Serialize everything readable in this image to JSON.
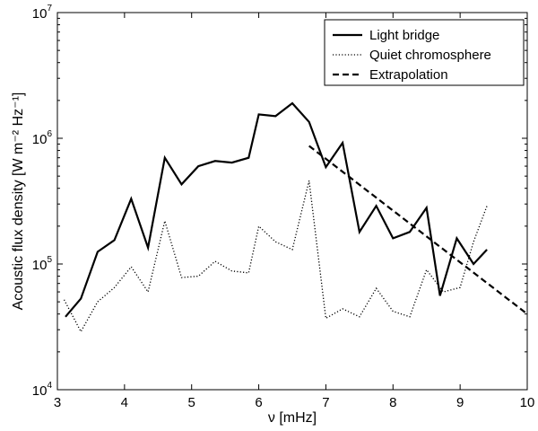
{
  "chart_data": {
    "type": "line",
    "xlabel": "ν [mHz]",
    "ylabel": "Acoustic flux density [W m⁻² Hz⁻¹]",
    "xlim": [
      3,
      10
    ],
    "ylim": [
      10000,
      10000000
    ],
    "yscale": "log",
    "grid": false,
    "legend_position": "top-right",
    "x_ticks": [
      "3",
      "4",
      "5",
      "6",
      "7",
      "8",
      "9",
      "10"
    ],
    "y_ticks": [
      {
        "base": "10",
        "exp": "4",
        "value": 10000
      },
      {
        "base": "10",
        "exp": "5",
        "value": 100000
      },
      {
        "base": "10",
        "exp": "6",
        "value": 1000000
      },
      {
        "base": "10",
        "exp": "7",
        "value": 10000000
      }
    ],
    "series": [
      {
        "name": "Light bridge",
        "style": "solid",
        "color": "#000000",
        "x": [
          3.12,
          3.35,
          3.6,
          3.85,
          4.1,
          4.35,
          4.6,
          4.85,
          5.1,
          5.35,
          5.6,
          5.85,
          6.0,
          6.25,
          6.5,
          6.75,
          7.0,
          7.25,
          7.5,
          7.75,
          8.0,
          8.25,
          8.5,
          8.7,
          8.95,
          9.2,
          9.4
        ],
        "y": [
          38000,
          53000,
          125000,
          155000,
          330000,
          135000,
          700000,
          430000,
          600000,
          660000,
          640000,
          700000,
          1550000,
          1500000,
          1900000,
          1350000,
          590000,
          920000,
          180000,
          290000,
          160000,
          180000,
          280000,
          56000,
          160000,
          100000,
          130000
        ]
      },
      {
        "name": "Quiet chromosphere",
        "style": "dotted",
        "color": "#000000",
        "x": [
          3.1,
          3.35,
          3.6,
          3.85,
          4.1,
          4.35,
          4.6,
          4.85,
          5.1,
          5.35,
          5.6,
          5.85,
          6.0,
          6.25,
          6.5,
          6.75,
          7.0,
          7.25,
          7.5,
          7.75,
          8.0,
          8.25,
          8.5,
          8.75,
          9.0,
          9.2,
          9.4
        ],
        "y": [
          52000,
          29000,
          50000,
          65000,
          95000,
          60000,
          220000,
          78000,
          80000,
          105000,
          88000,
          85000,
          200000,
          150000,
          130000,
          460000,
          37000,
          44000,
          38000,
          64000,
          42000,
          38000,
          90000,
          60000,
          65000,
          150000,
          290000
        ]
      },
      {
        "name": "Extrapolation",
        "style": "dashed",
        "color": "#000000",
        "x": [
          6.75,
          10.0
        ],
        "y": [
          870000,
          40000
        ]
      }
    ]
  }
}
